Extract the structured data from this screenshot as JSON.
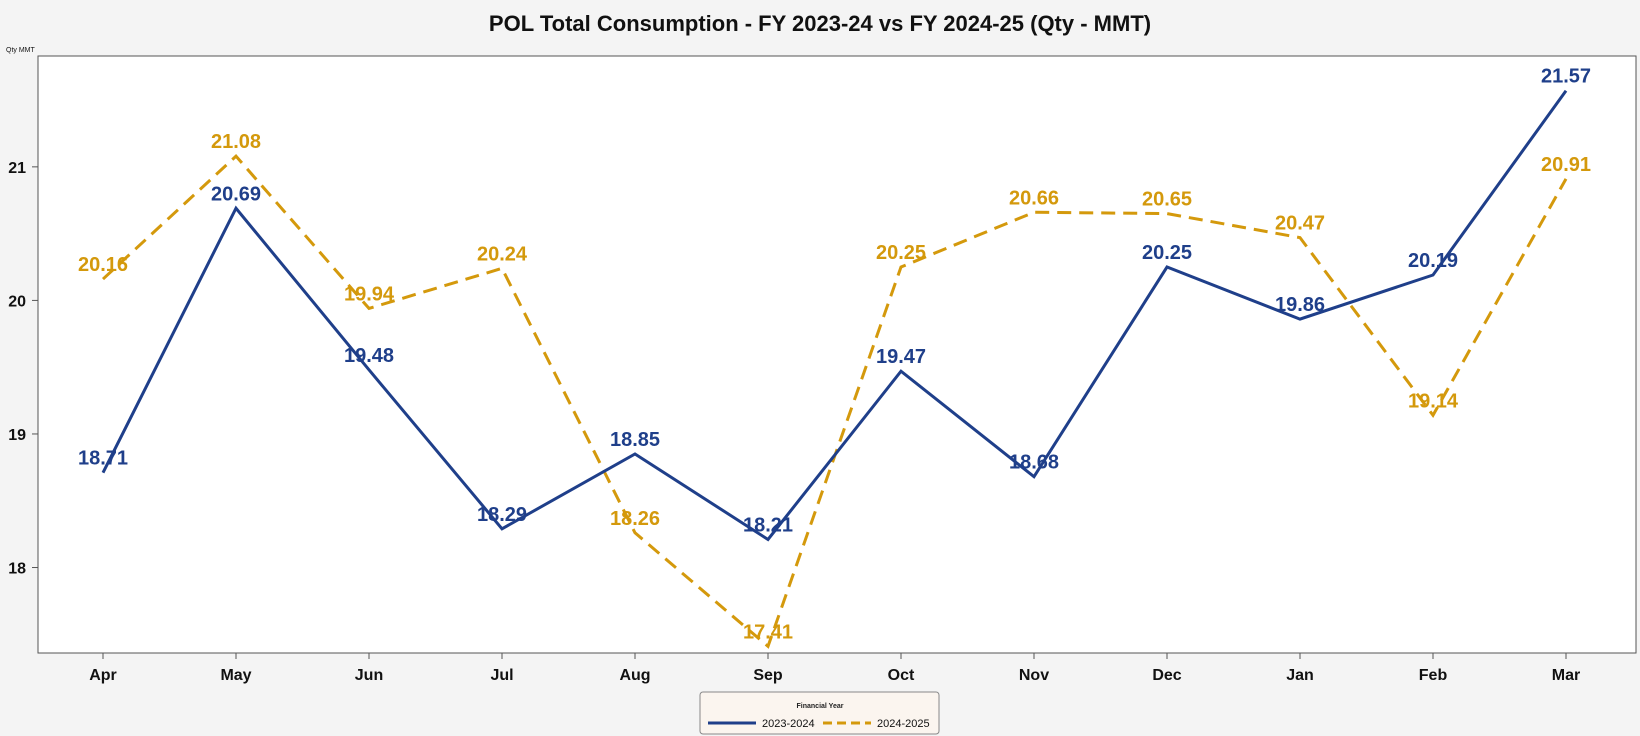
{
  "chart_data": {
    "type": "line",
    "title": "POL Total Consumption - FY 2023-24 vs FY 2024-25 (Qty - MMT)",
    "ylabel": "Qty MMT",
    "xlabel": "",
    "categories": [
      "Apr",
      "May",
      "Jun",
      "Jul",
      "Aug",
      "Sep",
      "Oct",
      "Nov",
      "Dec",
      "Jan",
      "Feb",
      "Mar"
    ],
    "yticks": [
      18,
      19,
      20,
      21
    ],
    "ylim": [
      17.36,
      21.83
    ],
    "grid": false,
    "legend": {
      "title": "Financial Year",
      "placement": "bottom-center"
    },
    "series": [
      {
        "name": "2023-2024",
        "color": "#1f3f8a",
        "style": "solid",
        "values": [
          18.71,
          20.69,
          19.48,
          18.29,
          18.85,
          18.21,
          19.47,
          18.68,
          20.25,
          19.86,
          20.19,
          21.57
        ],
        "labels": [
          "18.71",
          "20.69",
          "19.48",
          "18.29",
          "18.85",
          "18.21",
          "19.47",
          "18.68",
          "20.25",
          "19.86",
          "20.19",
          "21.57"
        ]
      },
      {
        "name": "2024-2025",
        "color": "#d4990c",
        "style": "dashed",
        "values": [
          20.16,
          21.08,
          19.94,
          20.24,
          18.26,
          17.41,
          20.25,
          20.66,
          20.65,
          20.47,
          19.14,
          20.91
        ],
        "labels": [
          "20.16",
          "21.08",
          "19.94",
          "20.24",
          "18.26",
          "17.41",
          "20.25",
          "20.66",
          "20.65",
          "20.47",
          "19.14",
          "20.91"
        ]
      }
    ]
  }
}
